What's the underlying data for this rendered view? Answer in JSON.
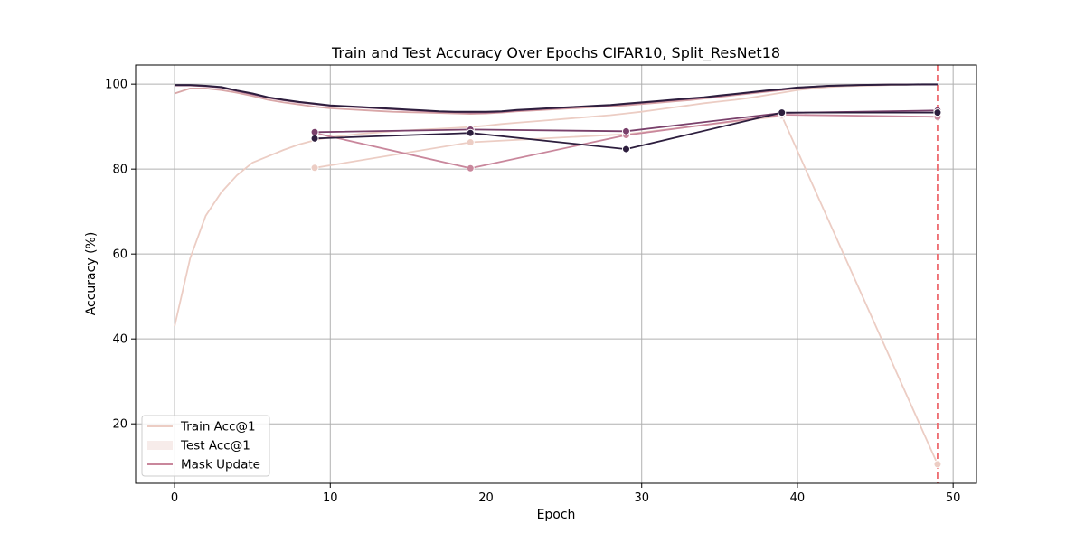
{
  "chart_data": {
    "type": "line",
    "title": "Train and Test Accuracy Over Epochs CIFAR10, Split_ResNet18",
    "xlabel": "Epoch",
    "ylabel": "Accuracy (%)",
    "xlim": [
      -2.5,
      51.5
    ],
    "ylim": [
      6,
      104.5
    ],
    "xticks": [
      0,
      10,
      20,
      30,
      40,
      50
    ],
    "yticks": [
      20,
      40,
      60,
      80,
      100
    ],
    "grid": true,
    "legend": {
      "position": "lower-left",
      "entries": [
        {
          "label": "Train Acc@1",
          "style": "line",
          "color": "#eccdc4"
        },
        {
          "label": "Test Acc@1",
          "style": "patch",
          "color": "#f7ecea"
        },
        {
          "label": "Mask Update",
          "style": "line",
          "color": "#c9879c"
        }
      ]
    },
    "vline": {
      "x": 49,
      "color": "#ee6a6e",
      "dashed": true
    },
    "train_series": [
      {
        "color": "#eccdc4",
        "x": [
          0,
          1,
          2,
          3,
          4,
          5,
          6,
          7,
          8,
          9,
          10,
          11,
          12,
          13,
          14,
          15,
          16,
          17,
          18,
          19,
          20,
          21,
          22,
          23,
          24,
          25,
          26,
          27,
          28,
          29,
          30,
          31,
          32,
          33,
          34,
          35,
          36,
          37,
          38,
          39,
          40,
          41,
          42,
          43,
          44,
          45,
          46,
          47,
          48,
          49
        ],
        "y": [
          43,
          59,
          69,
          74.5,
          78.5,
          81.5,
          83,
          84.5,
          85.8,
          86.8,
          87.5,
          87.9,
          88.3,
          88.6,
          88.9,
          89.1,
          89.3,
          89.5,
          89.7,
          89.9,
          90.2,
          90.6,
          90.9,
          91.2,
          91.5,
          91.8,
          92.1,
          92.4,
          92.7,
          93.1,
          93.5,
          94,
          94.5,
          95,
          95.5,
          95.9,
          96.3,
          96.8,
          97.4,
          98,
          98.6,
          99,
          99.3,
          99.5,
          99.6,
          99.7,
          99.8,
          99.85,
          99.9,
          99.9
        ]
      },
      {
        "color": "#d9a7a8",
        "x": [
          0,
          1,
          2,
          3,
          4,
          5,
          6,
          7,
          8,
          9,
          10,
          11,
          12,
          13,
          14,
          15,
          16,
          17,
          18,
          19,
          20,
          21,
          22,
          23,
          24,
          25,
          26,
          27,
          28,
          29,
          30,
          31,
          32,
          33,
          34,
          35,
          36,
          37,
          38,
          39,
          40,
          41,
          42,
          43,
          44,
          45,
          46,
          47,
          48,
          49
        ],
        "y": [
          97.8,
          99,
          99,
          98.6,
          98,
          97.2,
          96.3,
          95.7,
          95.2,
          94.7,
          94.3,
          94.1,
          93.9,
          93.7,
          93.5,
          93.4,
          93.3,
          93.2,
          93.1,
          93,
          93.1,
          93.3,
          93.6,
          93.8,
          94,
          94.2,
          94.4,
          94.6,
          94.8,
          95,
          95.3,
          95.6,
          95.9,
          96.2,
          96.6,
          97,
          97.4,
          97.8,
          98.2,
          98.6,
          99,
          99.3,
          99.5,
          99.7,
          99.8,
          99.85,
          99.9,
          99.9,
          99.9,
          99.9
        ]
      },
      {
        "color": "#a55e85",
        "x": [
          0,
          1,
          2,
          3,
          4,
          5,
          6,
          7,
          8,
          9,
          10,
          11,
          12,
          13,
          14,
          15,
          16,
          17,
          18,
          19,
          20,
          21,
          22,
          23,
          24,
          25,
          26,
          27,
          28,
          29,
          30,
          31,
          32,
          33,
          34,
          35,
          36,
          37,
          38,
          39,
          40,
          41,
          42,
          43,
          44,
          45,
          46,
          47,
          48,
          49
        ],
        "y": [
          99.7,
          99.7,
          99.5,
          99.2,
          98.4,
          97.6,
          96.8,
          96.2,
          95.7,
          95.3,
          94.9,
          94.7,
          94.5,
          94.3,
          94.1,
          93.9,
          93.7,
          93.5,
          93.4,
          93.3,
          93.3,
          93.5,
          93.8,
          94,
          94.2,
          94.4,
          94.6,
          94.8,
          95,
          95.3,
          95.6,
          95.9,
          96.2,
          96.5,
          96.8,
          97.2,
          97.6,
          98,
          98.4,
          98.7,
          99.1,
          99.4,
          99.6,
          99.7,
          99.8,
          99.85,
          99.9,
          99.9,
          99.9,
          99.9
        ]
      },
      {
        "color": "#2d1e3e",
        "x": [
          0,
          1,
          2,
          3,
          4,
          5,
          6,
          7,
          8,
          9,
          10,
          11,
          12,
          13,
          14,
          15,
          16,
          17,
          18,
          19,
          20,
          21,
          22,
          23,
          24,
          25,
          26,
          27,
          28,
          29,
          30,
          31,
          32,
          33,
          34,
          35,
          36,
          37,
          38,
          39,
          40,
          41,
          42,
          43,
          44,
          45,
          46,
          47,
          48,
          49
        ],
        "y": [
          99.8,
          99.8,
          99.6,
          99.3,
          98.5,
          97.8,
          96.9,
          96.3,
          95.8,
          95.4,
          95,
          94.8,
          94.6,
          94.4,
          94.2,
          94,
          93.8,
          93.6,
          93.5,
          93.5,
          93.5,
          93.6,
          93.9,
          94.1,
          94.3,
          94.5,
          94.7,
          94.9,
          95.1,
          95.4,
          95.7,
          96,
          96.3,
          96.6,
          96.9,
          97.3,
          97.7,
          98.1,
          98.5,
          98.8,
          99.2,
          99.4,
          99.6,
          99.7,
          99.8,
          99.85,
          99.9,
          99.9,
          99.95,
          99.95
        ]
      }
    ],
    "test_series": [
      {
        "color": "#eccdc4",
        "x": [
          9,
          19,
          29,
          39,
          49
        ],
        "y": [
          80.3,
          86.3,
          88.2,
          92.5,
          10.5
        ]
      },
      {
        "color": "#c9879c",
        "x": [
          9,
          19,
          29,
          39,
          49
        ],
        "y": [
          88.5,
          80.2,
          88,
          92.8,
          92.3
        ]
      },
      {
        "color": "#79406b",
        "x": [
          9,
          19,
          29,
          39,
          49
        ],
        "y": [
          88.7,
          89.3,
          88.9,
          93.2,
          93.8
        ]
      },
      {
        "color": "#2d1e3e",
        "x": [
          9,
          19,
          29,
          39,
          49
        ],
        "y": [
          87.2,
          88.5,
          84.7,
          93.3,
          93.3
        ]
      }
    ]
  }
}
